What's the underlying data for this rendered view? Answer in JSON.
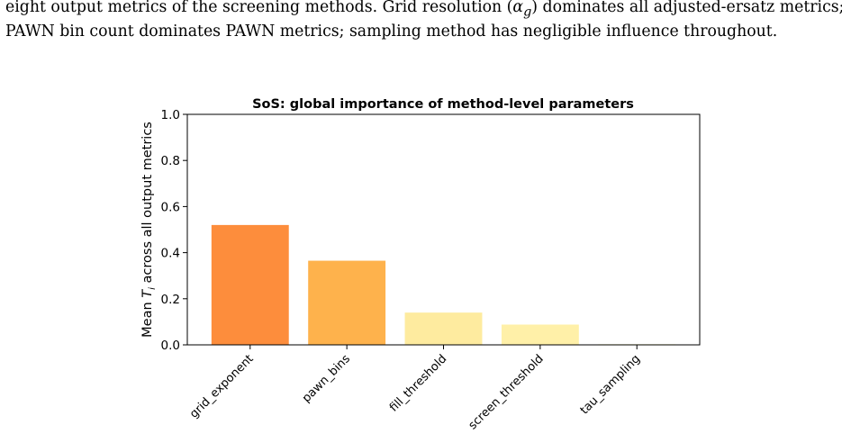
{
  "caption": {
    "line1": "eight output metrics of the screening methods. Grid resolution (αg) dominates all adjusted-ersatz metrics;",
    "line1_parts": {
      "before": "eight output metrics of the screening methods. Grid resolution (",
      "symbol": "α",
      "subscript": "g",
      "after": ") dominates all adjusted-ersatz metrics;"
    },
    "line2": "PAWN bin count dominates PAWN metrics; sampling method has negligible influence throughout."
  },
  "chart_data": {
    "type": "bar",
    "title": "SoS: global importance of method-level parameters",
    "xlabel": "",
    "ylabel": "Mean Ti across all output metrics",
    "ylabel_parts": {
      "before": "Mean ",
      "symbol": "T",
      "subscript": "i",
      "after": " across all output metrics"
    },
    "categories": [
      "grid_exponent",
      "pawn_bins",
      "fill_threshold",
      "screen_threshold",
      "tau_sampling"
    ],
    "values": [
      0.52,
      0.365,
      0.14,
      0.088,
      0.003
    ],
    "colors": [
      "#fd8d3c",
      "#feb24c",
      "#feeb9f",
      "#fff0a8",
      "#ffffcc"
    ],
    "ylim": [
      0,
      1.0
    ],
    "yticks": [
      0.0,
      0.2,
      0.4,
      0.6,
      0.8,
      1.0
    ],
    "ytick_labels": [
      "0.0",
      "0.2",
      "0.4",
      "0.6",
      "0.8",
      "1.0"
    ],
    "grid": false,
    "legend": "none"
  }
}
